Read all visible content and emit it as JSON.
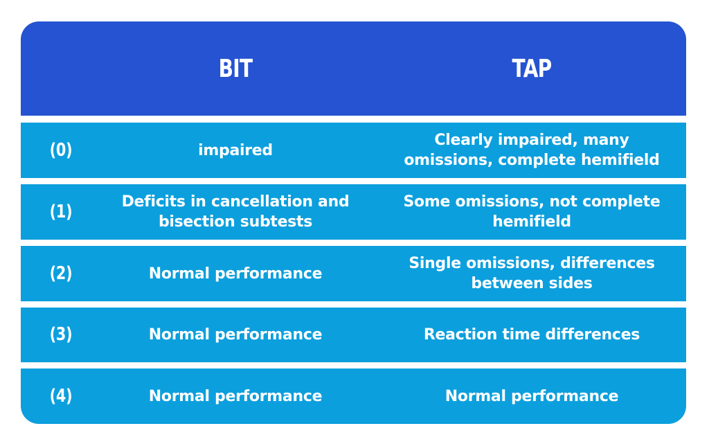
{
  "header": {
    "col_bit": "BIT",
    "col_tap": "TAP"
  },
  "rows": [
    {
      "index": "(0)",
      "bit": "impaired",
      "tap": "Clearly impaired, many\nomissions, complete hemifield"
    },
    {
      "index": "(1)",
      "bit": "Deficits in cancellation and\nbisection subtests",
      "tap": "Some omissions, not complete\nhemifield"
    },
    {
      "index": "(2)",
      "bit": "Normal performance",
      "tap": "Single omissions, differences\nbetween sides"
    },
    {
      "index": "(3)",
      "bit": "Normal performance",
      "tap": "Reaction time differences"
    },
    {
      "index": "(4)",
      "bit": "Normal performance",
      "tap": "Normal performance"
    }
  ],
  "colors": {
    "header_bg": "#2553d1",
    "row_bg": "#0c9fdd",
    "text": "#ffffff"
  }
}
